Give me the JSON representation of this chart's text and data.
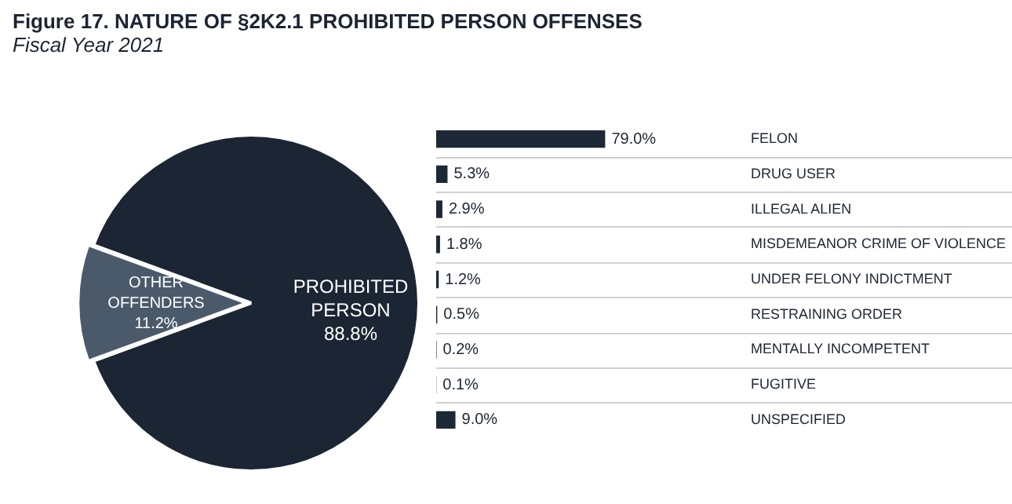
{
  "chart_data": [
    {
      "type": "pie",
      "title": "Figure 17.  NATURE OF §2K2.1 PROHIBITED PERSON OFFENSES",
      "subtitle": "Fiscal Year 2021",
      "categories": [
        "PROHIBITED PERSON",
        "OTHER OFFENDERS"
      ],
      "values": [
        88.8,
        11.2
      ],
      "value_labels": [
        "88.8%",
        "11.2%"
      ],
      "colors": [
        "#1c2533",
        "#4b5a6b"
      ],
      "legend": false
    },
    {
      "type": "bar",
      "orientation": "horizontal",
      "categories": [
        "FELON",
        "DRUG USER",
        "ILLEGAL ALIEN",
        "MISDEMEANOR CRIME OF VIOLENCE",
        "UNDER FELONY INDICTMENT",
        "RESTRAINING ORDER",
        "MENTALLY INCOMPETENT",
        "FUGITIVE",
        "UNSPECIFIED"
      ],
      "values": [
        79.0,
        5.3,
        2.9,
        1.8,
        1.2,
        0.5,
        0.2,
        0.1,
        9.0
      ],
      "value_labels": [
        "79.0%",
        "5.3%",
        "2.9%",
        "1.8%",
        "1.2%",
        "0.5%",
        "0.2%",
        "0.1%",
        "9.0%"
      ],
      "color": "#1c2836",
      "grid": "y",
      "legend": false
    }
  ]
}
